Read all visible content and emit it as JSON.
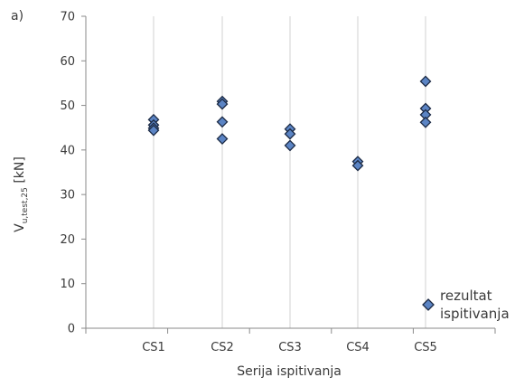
{
  "chart_data": {
    "type": "scatter",
    "panel_label": "a)",
    "title": "",
    "xlabel": "Serija ispitivanja",
    "ylabel": {
      "main": "V",
      "subscript": "u,test,25",
      "unit": " [kN]"
    },
    "categories": [
      "CS1",
      "CS2",
      "CS3",
      "CS4",
      "CS5"
    ],
    "ylim": [
      0,
      70
    ],
    "yticks": [
      "0",
      "10",
      "20",
      "30",
      "40",
      "50",
      "60",
      "70"
    ],
    "grid": "vertical",
    "legend_position": "bottom-right",
    "series": [
      {
        "name": "rezultat ispitivanja",
        "legend_lines": [
          "rezultat",
          "ispitivanja"
        ],
        "color": "#5b84c4",
        "edge_color": "#1c2a44",
        "marker": "diamond",
        "points": [
          {
            "x": "CS1",
            "y": 46.8
          },
          {
            "x": "CS1",
            "y": 45.6
          },
          {
            "x": "CS1",
            "y": 44.9
          },
          {
            "x": "CS1",
            "y": 44.4
          },
          {
            "x": "CS2",
            "y": 50.9
          },
          {
            "x": "CS2",
            "y": 50.3
          },
          {
            "x": "CS2",
            "y": 46.3
          },
          {
            "x": "CS2",
            "y": 42.5
          },
          {
            "x": "CS3",
            "y": 44.7
          },
          {
            "x": "CS3",
            "y": 43.6
          },
          {
            "x": "CS3",
            "y": 41.0
          },
          {
            "x": "CS4",
            "y": 37.4
          },
          {
            "x": "CS4",
            "y": 36.5
          },
          {
            "x": "CS5",
            "y": 55.4
          },
          {
            "x": "CS5",
            "y": 49.3
          },
          {
            "x": "CS5",
            "y": 47.9
          },
          {
            "x": "CS5",
            "y": 46.2
          }
        ]
      }
    ]
  }
}
